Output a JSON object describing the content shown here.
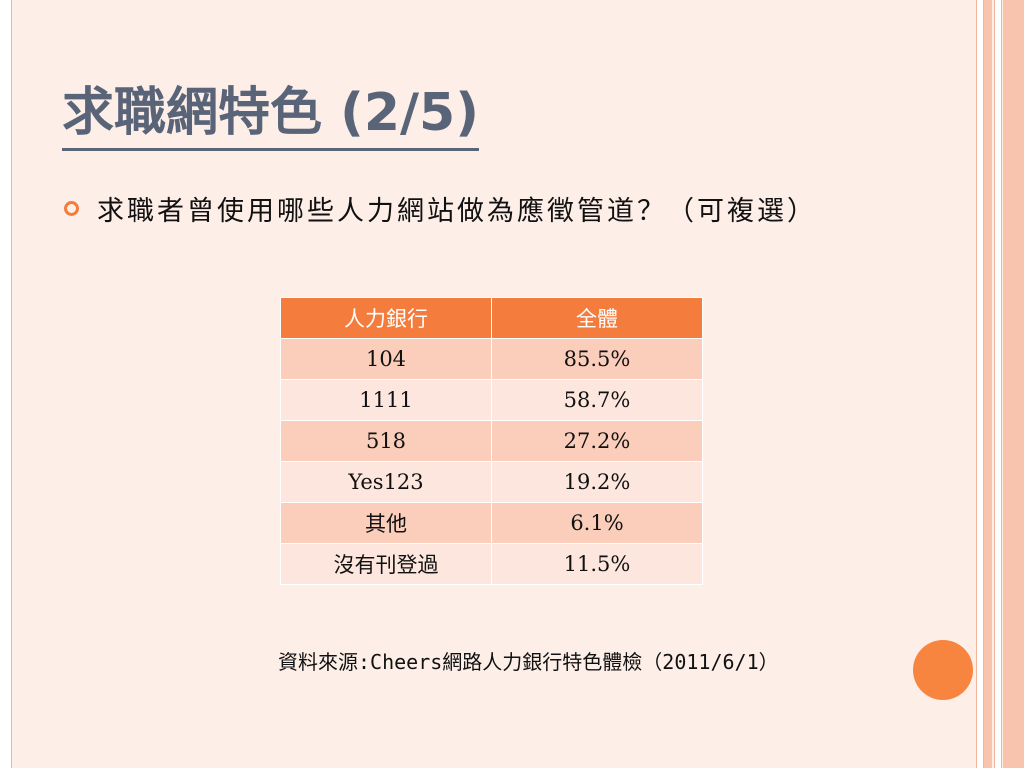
{
  "slide": {
    "title": "求職網特色 (2/5)",
    "bullet": "求職者曾使用哪些人力網站做為應徵管道？（可複選）",
    "source": "資料來源:Cheers網路人力銀行特色體檢（2011/6/1）"
  },
  "table": {
    "headers": [
      "人力銀行",
      "全體"
    ],
    "rows": [
      [
        "104",
        "85.5%"
      ],
      [
        "1111",
        "58.7%"
      ],
      [
        "518",
        "27.2%"
      ],
      [
        "Yes123",
        "19.2%"
      ],
      [
        "其他",
        "6.1%"
      ],
      [
        "沒有刊登過",
        "11.5%"
      ]
    ]
  },
  "colors": {
    "accent": "#f47c3c",
    "title": "#5a6478",
    "background": "#fdefe8"
  }
}
